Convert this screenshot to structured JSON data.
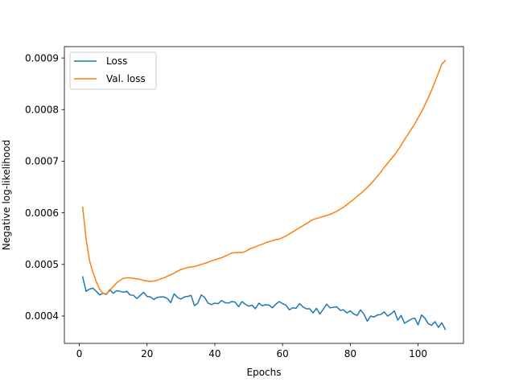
{
  "chart_data": {
    "type": "line",
    "title": "",
    "xlabel": "Epochs",
    "ylabel": "Negative log-likelihood",
    "xlim": [
      -4.4,
      113.4
    ],
    "ylim": [
      0.000347,
      0.000922
    ],
    "xticks": [
      0,
      20,
      40,
      60,
      80,
      100
    ],
    "yticks": [
      0.0004,
      0.0005,
      0.0006,
      0.0007,
      0.0008,
      0.0009
    ],
    "xtick_labels": [
      "0",
      "20",
      "40",
      "60",
      "80",
      "100"
    ],
    "ytick_labels": [
      "0.0004",
      "0.0005",
      "0.0006",
      "0.0007",
      "0.0008",
      "0.0009"
    ],
    "grid": false,
    "legend_position": "top-left",
    "series": [
      {
        "name": "Loss",
        "color": "#1f77b4",
        "points": [
          [
            1,
            0.000476
          ],
          [
            2,
            0.000448
          ],
          [
            3,
            0.000452
          ],
          [
            4,
            0.000454
          ],
          [
            5,
            0.000448
          ],
          [
            6,
            0.000441
          ],
          [
            7,
            0.000444
          ],
          [
            8,
            0.000442
          ],
          [
            9,
            0.000451
          ],
          [
            10,
            0.000444
          ],
          [
            11,
            0.000449
          ],
          [
            12,
            0.000448
          ],
          [
            13,
            0.000446
          ],
          [
            14,
            0.000448
          ],
          [
            15,
            0.000441
          ],
          [
            16,
            0.00044
          ],
          [
            17,
            0.000434
          ],
          [
            18,
            0.00044
          ],
          [
            19,
            0.000446
          ],
          [
            20,
            0.000438
          ],
          [
            21,
            0.000437
          ],
          [
            22,
            0.000432
          ],
          [
            23,
            0.000436
          ],
          [
            24,
            0.000437
          ],
          [
            25,
            0.000437
          ],
          [
            26,
            0.000434
          ],
          [
            27,
            0.000426
          ],
          [
            28,
            0.000443
          ],
          [
            29,
            0.000436
          ],
          [
            30,
            0.000433
          ],
          [
            31,
            0.000437
          ],
          [
            32,
            0.000438
          ],
          [
            33,
            0.00044
          ],
          [
            34,
            0.00042
          ],
          [
            35,
            0.000425
          ],
          [
            36,
            0.000441
          ],
          [
            37,
            0.000436
          ],
          [
            38,
            0.000425
          ],
          [
            39,
            0.000422
          ],
          [
            40,
            0.000425
          ],
          [
            41,
            0.000424
          ],
          [
            42,
            0.00043
          ],
          [
            43,
            0.000426
          ],
          [
            44,
            0.000425
          ],
          [
            45,
            0.000428
          ],
          [
            46,
            0.000427
          ],
          [
            47,
            0.000418
          ],
          [
            48,
            0.000428
          ],
          [
            49,
            0.000423
          ],
          [
            50,
            0.000419
          ],
          [
            51,
            0.000421
          ],
          [
            52,
            0.000414
          ],
          [
            53,
            0.000425
          ],
          [
            54,
            0.00042
          ],
          [
            55,
            0.000422
          ],
          [
            56,
            0.000421
          ],
          [
            57,
            0.000416
          ],
          [
            58,
            0.000423
          ],
          [
            59,
            0.000428
          ],
          [
            60,
            0.000424
          ],
          [
            61,
            0.000421
          ],
          [
            62,
            0.000412
          ],
          [
            63,
            0.000416
          ],
          [
            64,
            0.000415
          ],
          [
            65,
            0.000424
          ],
          [
            66,
            0.000418
          ],
          [
            67,
            0.000414
          ],
          [
            68,
            0.000414
          ],
          [
            69,
            0.000406
          ],
          [
            70,
            0.000415
          ],
          [
            71,
            0.000404
          ],
          [
            72,
            0.000413
          ],
          [
            73,
            0.000423
          ],
          [
            74,
            0.000416
          ],
          [
            75,
            0.000417
          ],
          [
            76,
            0.000418
          ],
          [
            77,
            0.000411
          ],
          [
            78,
            0.000412
          ],
          [
            79,
            0.000406
          ],
          [
            80,
            0.00041
          ],
          [
            81,
            0.000404
          ],
          [
            82,
            0.000401
          ],
          [
            83,
            0.000412
          ],
          [
            84,
            0.000404
          ],
          [
            85,
            0.00039
          ],
          [
            86,
            0.0004
          ],
          [
            87,
            0.000398
          ],
          [
            88,
            0.000402
          ],
          [
            89,
            0.000403
          ],
          [
            90,
            0.000408
          ],
          [
            91,
            0.0004
          ],
          [
            92,
            0.000404
          ],
          [
            93,
            0.00041
          ],
          [
            94,
            0.000392
          ],
          [
            95,
            0.000401
          ],
          [
            96,
            0.000386
          ],
          [
            97,
            0.00039
          ],
          [
            98,
            0.000394
          ],
          [
            99,
            0.000396
          ],
          [
            100,
            0.000383
          ],
          [
            101,
            0.000402
          ],
          [
            102,
            0.000396
          ],
          [
            103,
            0.000385
          ],
          [
            104,
            0.000382
          ],
          [
            105,
            0.000389
          ],
          [
            106,
            0.000378
          ],
          [
            107,
            0.000387
          ],
          [
            108,
            0.000374
          ]
        ]
      },
      {
        "name": "Val. loss",
        "color": "#ff7f0e",
        "points": [
          [
            1,
            0.000611
          ],
          [
            2,
            0.00055
          ],
          [
            3,
            0.000508
          ],
          [
            4,
            0.000485
          ],
          [
            5,
            0.000467
          ],
          [
            6,
            0.000452
          ],
          [
            7,
            0.000444
          ],
          [
            8,
            0.000443
          ],
          [
            9,
            0.000449
          ],
          [
            10,
            0.000457
          ],
          [
            11,
            0.000464
          ],
          [
            12,
            0.000469
          ],
          [
            13,
            0.000473
          ],
          [
            14,
            0.000474
          ],
          [
            15,
            0.000474
          ],
          [
            16,
            0.000473
          ],
          [
            17,
            0.000472
          ],
          [
            18,
            0.000471
          ],
          [
            19,
            0.000469
          ],
          [
            20,
            0.000468
          ],
          [
            21,
            0.000467
          ],
          [
            22,
            0.000468
          ],
          [
            23,
            0.000469
          ],
          [
            24,
            0.000472
          ],
          [
            25,
            0.000474
          ],
          [
            26,
            0.000477
          ],
          [
            27,
            0.00048
          ],
          [
            28,
            0.000483
          ],
          [
            29,
            0.000487
          ],
          [
            30,
            0.00049
          ],
          [
            31,
            0.000492
          ],
          [
            32,
            0.000494
          ],
          [
            33,
            0.000495
          ],
          [
            34,
            0.000496
          ],
          [
            35,
            0.000498
          ],
          [
            36,
            0.0005
          ],
          [
            37,
            0.000502
          ],
          [
            38,
            0.000504
          ],
          [
            39,
            0.000507
          ],
          [
            40,
            0.000509
          ],
          [
            41,
            0.000511
          ],
          [
            42,
            0.000513
          ],
          [
            43,
            0.000516
          ],
          [
            44,
            0.000519
          ],
          [
            45,
            0.000522
          ],
          [
            46,
            0.000523
          ],
          [
            47,
            0.000523
          ],
          [
            48,
            0.000523
          ],
          [
            49,
            0.000525
          ],
          [
            50,
            0.000529
          ],
          [
            51,
            0.000532
          ],
          [
            52,
            0.000534
          ],
          [
            53,
            0.000537
          ],
          [
            54,
            0.000539
          ],
          [
            55,
            0.000542
          ],
          [
            56,
            0.000544
          ],
          [
            57,
            0.000546
          ],
          [
            58,
            0.000548
          ],
          [
            59,
            0.000549
          ],
          [
            60,
            0.000552
          ],
          [
            61,
            0.000555
          ],
          [
            62,
            0.000559
          ],
          [
            63,
            0.000563
          ],
          [
            64,
            0.000567
          ],
          [
            65,
            0.000571
          ],
          [
            66,
            0.000575
          ],
          [
            67,
            0.000579
          ],
          [
            68,
            0.000583
          ],
          [
            69,
            0.000587
          ],
          [
            70,
            0.000589
          ],
          [
            71,
            0.000591
          ],
          [
            72,
            0.000593
          ],
          [
            73,
            0.000595
          ],
          [
            74,
            0.000597
          ],
          [
            75,
            0.0006
          ],
          [
            76,
            0.000603
          ],
          [
            77,
            0.000607
          ],
          [
            78,
            0.000611
          ],
          [
            79,
            0.000616
          ],
          [
            80,
            0.000621
          ],
          [
            81,
            0.000626
          ],
          [
            82,
            0.000632
          ],
          [
            83,
            0.000637
          ],
          [
            84,
            0.000643
          ],
          [
            85,
            0.000649
          ],
          [
            86,
            0.000656
          ],
          [
            87,
            0.000663
          ],
          [
            88,
            0.000671
          ],
          [
            89,
            0.000679
          ],
          [
            90,
            0.000688
          ],
          [
            91,
            0.000696
          ],
          [
            92,
            0.000704
          ],
          [
            93,
            0.000712
          ],
          [
            94,
            0.000721
          ],
          [
            95,
            0.000731
          ],
          [
            96,
            0.000742
          ],
          [
            97,
            0.000752
          ],
          [
            98,
            0.000762
          ],
          [
            99,
            0.000772
          ],
          [
            100,
            0.000784
          ],
          [
            101,
            0.000796
          ],
          [
            102,
            0.000809
          ],
          [
            103,
            0.000823
          ],
          [
            104,
            0.000838
          ],
          [
            105,
            0.000854
          ],
          [
            106,
            0.000871
          ],
          [
            107,
            0.000888
          ],
          [
            108,
            0.000895
          ]
        ]
      }
    ]
  }
}
